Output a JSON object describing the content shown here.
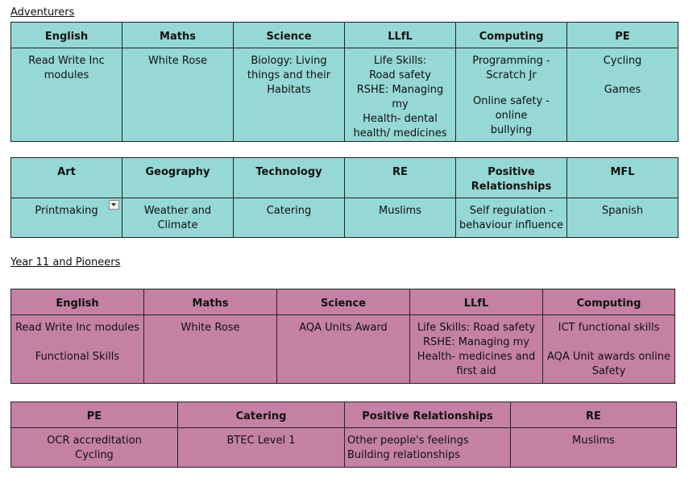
{
  "adventurers": {
    "title": "Adventurers",
    "table1": {
      "headers": [
        "English",
        "Maths",
        "Science",
        "LLfL",
        "Computing",
        "PE"
      ],
      "english": [
        "Read Write Inc",
        "modules"
      ],
      "maths": "White Rose",
      "science": [
        "Biology: Living",
        "things and their",
        "Habitats"
      ],
      "llfl": [
        "Life Skills:",
        "Road safety",
        "RSHE: Managing my",
        "Health- dental",
        "health/ medicines"
      ],
      "computing": [
        "Programming -",
        "Scratch Jr",
        "Online safety - online",
        "bullying"
      ],
      "pe": [
        "Cycling",
        "Games"
      ]
    },
    "table2": {
      "headers": [
        "Art",
        "Geography",
        "Technology",
        "RE",
        "Positive",
        "Relationships",
        "MFL"
      ],
      "art": "Printmaking",
      "geography": [
        "Weather and",
        "Climate"
      ],
      "technology": "Catering",
      "re": "Muslims",
      "positive": [
        "Self regulation -",
        "behaviour influence"
      ],
      "mfl": "Spanish"
    }
  },
  "pioneers": {
    "title": "Year 11 and Pioneers",
    "table1": {
      "headers": [
        "English",
        "Maths",
        "Science",
        "LLfL",
        "Computing"
      ],
      "english": [
        "Read Write Inc modules",
        "Functional Skills"
      ],
      "maths": "White Rose",
      "science": "AQA Units Award",
      "llfl": [
        "Life Skills: Road safety",
        "RSHE: Managing my",
        "Health- medicines and",
        "first aid"
      ],
      "computing": [
        "ICT functional skills",
        "AQA Unit awards online",
        "Safety"
      ]
    },
    "table2": {
      "headers": [
        "PE",
        "Catering",
        "Positive Relationships",
        "RE"
      ],
      "pe": [
        "OCR accreditation",
        "Cycling"
      ],
      "catering": "BTEC Level 1",
      "positive": [
        "Other people's feelings",
        "Building relationships"
      ],
      "re": "Muslims"
    }
  }
}
